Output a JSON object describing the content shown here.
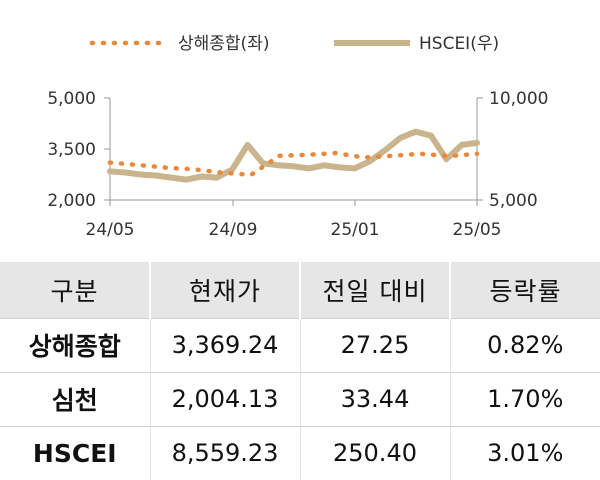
{
  "chart_data": {
    "type": "line",
    "legend": [
      "상해종합(좌)",
      "HSCEI(우)"
    ],
    "legend_position": "top",
    "x_ticks": [
      "24/05",
      "24/09",
      "25/01",
      "25/05"
    ],
    "y_left": {
      "ticks": [
        "5,000",
        "3,500",
        "2,000"
      ],
      "range": [
        2000,
        5000
      ]
    },
    "y_right": {
      "ticks": [
        "10,000",
        "5,000"
      ],
      "range": [
        5000,
        10000
      ]
    },
    "grid": false,
    "series": [
      {
        "name": "상해종합(좌)",
        "axis": "left",
        "style": "dotted",
        "color": "#e8883a",
        "x": [
          "24/05",
          "24/06",
          "24/07",
          "24/08",
          "24/09",
          "24/09 end",
          "24/10",
          "24/11",
          "24/12",
          "25/01",
          "25/02",
          "25/03",
          "25/04",
          "25/05"
        ],
        "values": [
          3100,
          3030,
          2950,
          2900,
          2800,
          2740,
          3300,
          3330,
          3380,
          3250,
          3300,
          3360,
          3290,
          3360
        ]
      },
      {
        "name": "HSCEI(우)",
        "axis": "right",
        "style": "solid",
        "color": "#c9b48e",
        "x": [
          "24/05",
          "24/05b",
          "24/06",
          "24/07",
          "24/07b",
          "24/08",
          "24/08b",
          "24/09",
          "24/09b",
          "24/10",
          "24/10b",
          "24/11",
          "24/11b",
          "24/12",
          "24/12b",
          "25/01",
          "25/01b",
          "25/02",
          "25/02b",
          "25/03",
          "25/03b",
          "25/03c",
          "25/04",
          "25/04b",
          "25/05"
        ],
        "values": [
          6400,
          6350,
          6250,
          6200,
          6100,
          6000,
          6150,
          6100,
          6500,
          7700,
          6800,
          6700,
          6650,
          6550,
          6700,
          6600,
          6550,
          6900,
          7450,
          8050,
          8350,
          8150,
          7000,
          7700,
          7800
        ]
      }
    ]
  },
  "table": {
    "headers": [
      "구분",
      "현재가",
      "전일 대비",
      "등락률"
    ],
    "rows": [
      [
        "상해종합",
        "3,369.24",
        "27.25",
        "0.82%"
      ],
      [
        "심천",
        "2,004.13",
        "33.44",
        "1.70%"
      ],
      [
        "HSCEI",
        "8,559.23",
        "250.40",
        "3.01%"
      ]
    ]
  }
}
